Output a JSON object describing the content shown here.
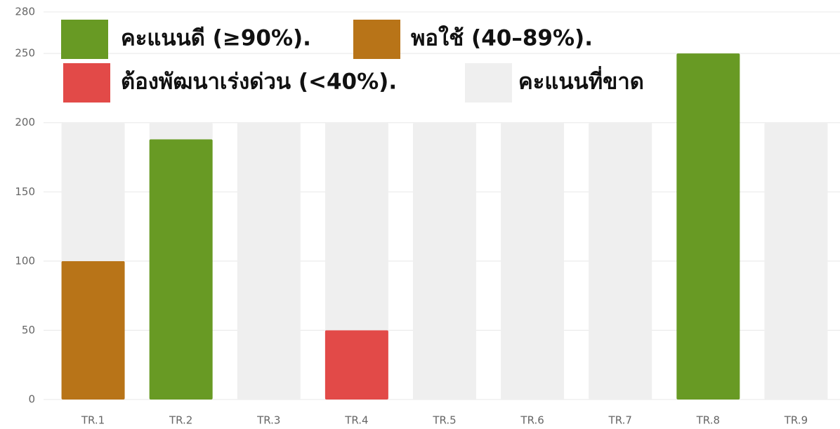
{
  "chart_data": {
    "type": "stacked_bar",
    "categories": [
      "TR.1",
      "TR.2",
      "TR.3",
      "TR.4",
      "TR.5",
      "TR.6",
      "TR.7",
      "TR.8",
      "TR.9"
    ],
    "series": [
      {
        "name": "คะแนนดี (≥90%).",
        "color": "#689a24",
        "values": [
          0,
          188,
          0,
          0,
          0,
          0,
          0,
          250,
          0
        ]
      },
      {
        "name": "พอใช้ (40–89%).",
        "color": "#b87418",
        "values": [
          100,
          0,
          0,
          0,
          0,
          0,
          0,
          0,
          0
        ]
      },
      {
        "name": "ต้องพัฒนาเร่งด่วน (<40%).",
        "color": "#e24a48",
        "values": [
          0,
          0,
          0,
          50,
          0,
          0,
          0,
          0,
          0
        ]
      },
      {
        "name": "คะแนนที่ขาด",
        "color": "#efefef",
        "values": [
          100,
          12,
          200,
          150,
          200,
          200,
          200,
          0,
          200
        ]
      }
    ],
    "ylim": [
      0,
      280
    ],
    "yticks": [
      0,
      50,
      100,
      150,
      200,
      250,
      280
    ],
    "grid": true
  }
}
